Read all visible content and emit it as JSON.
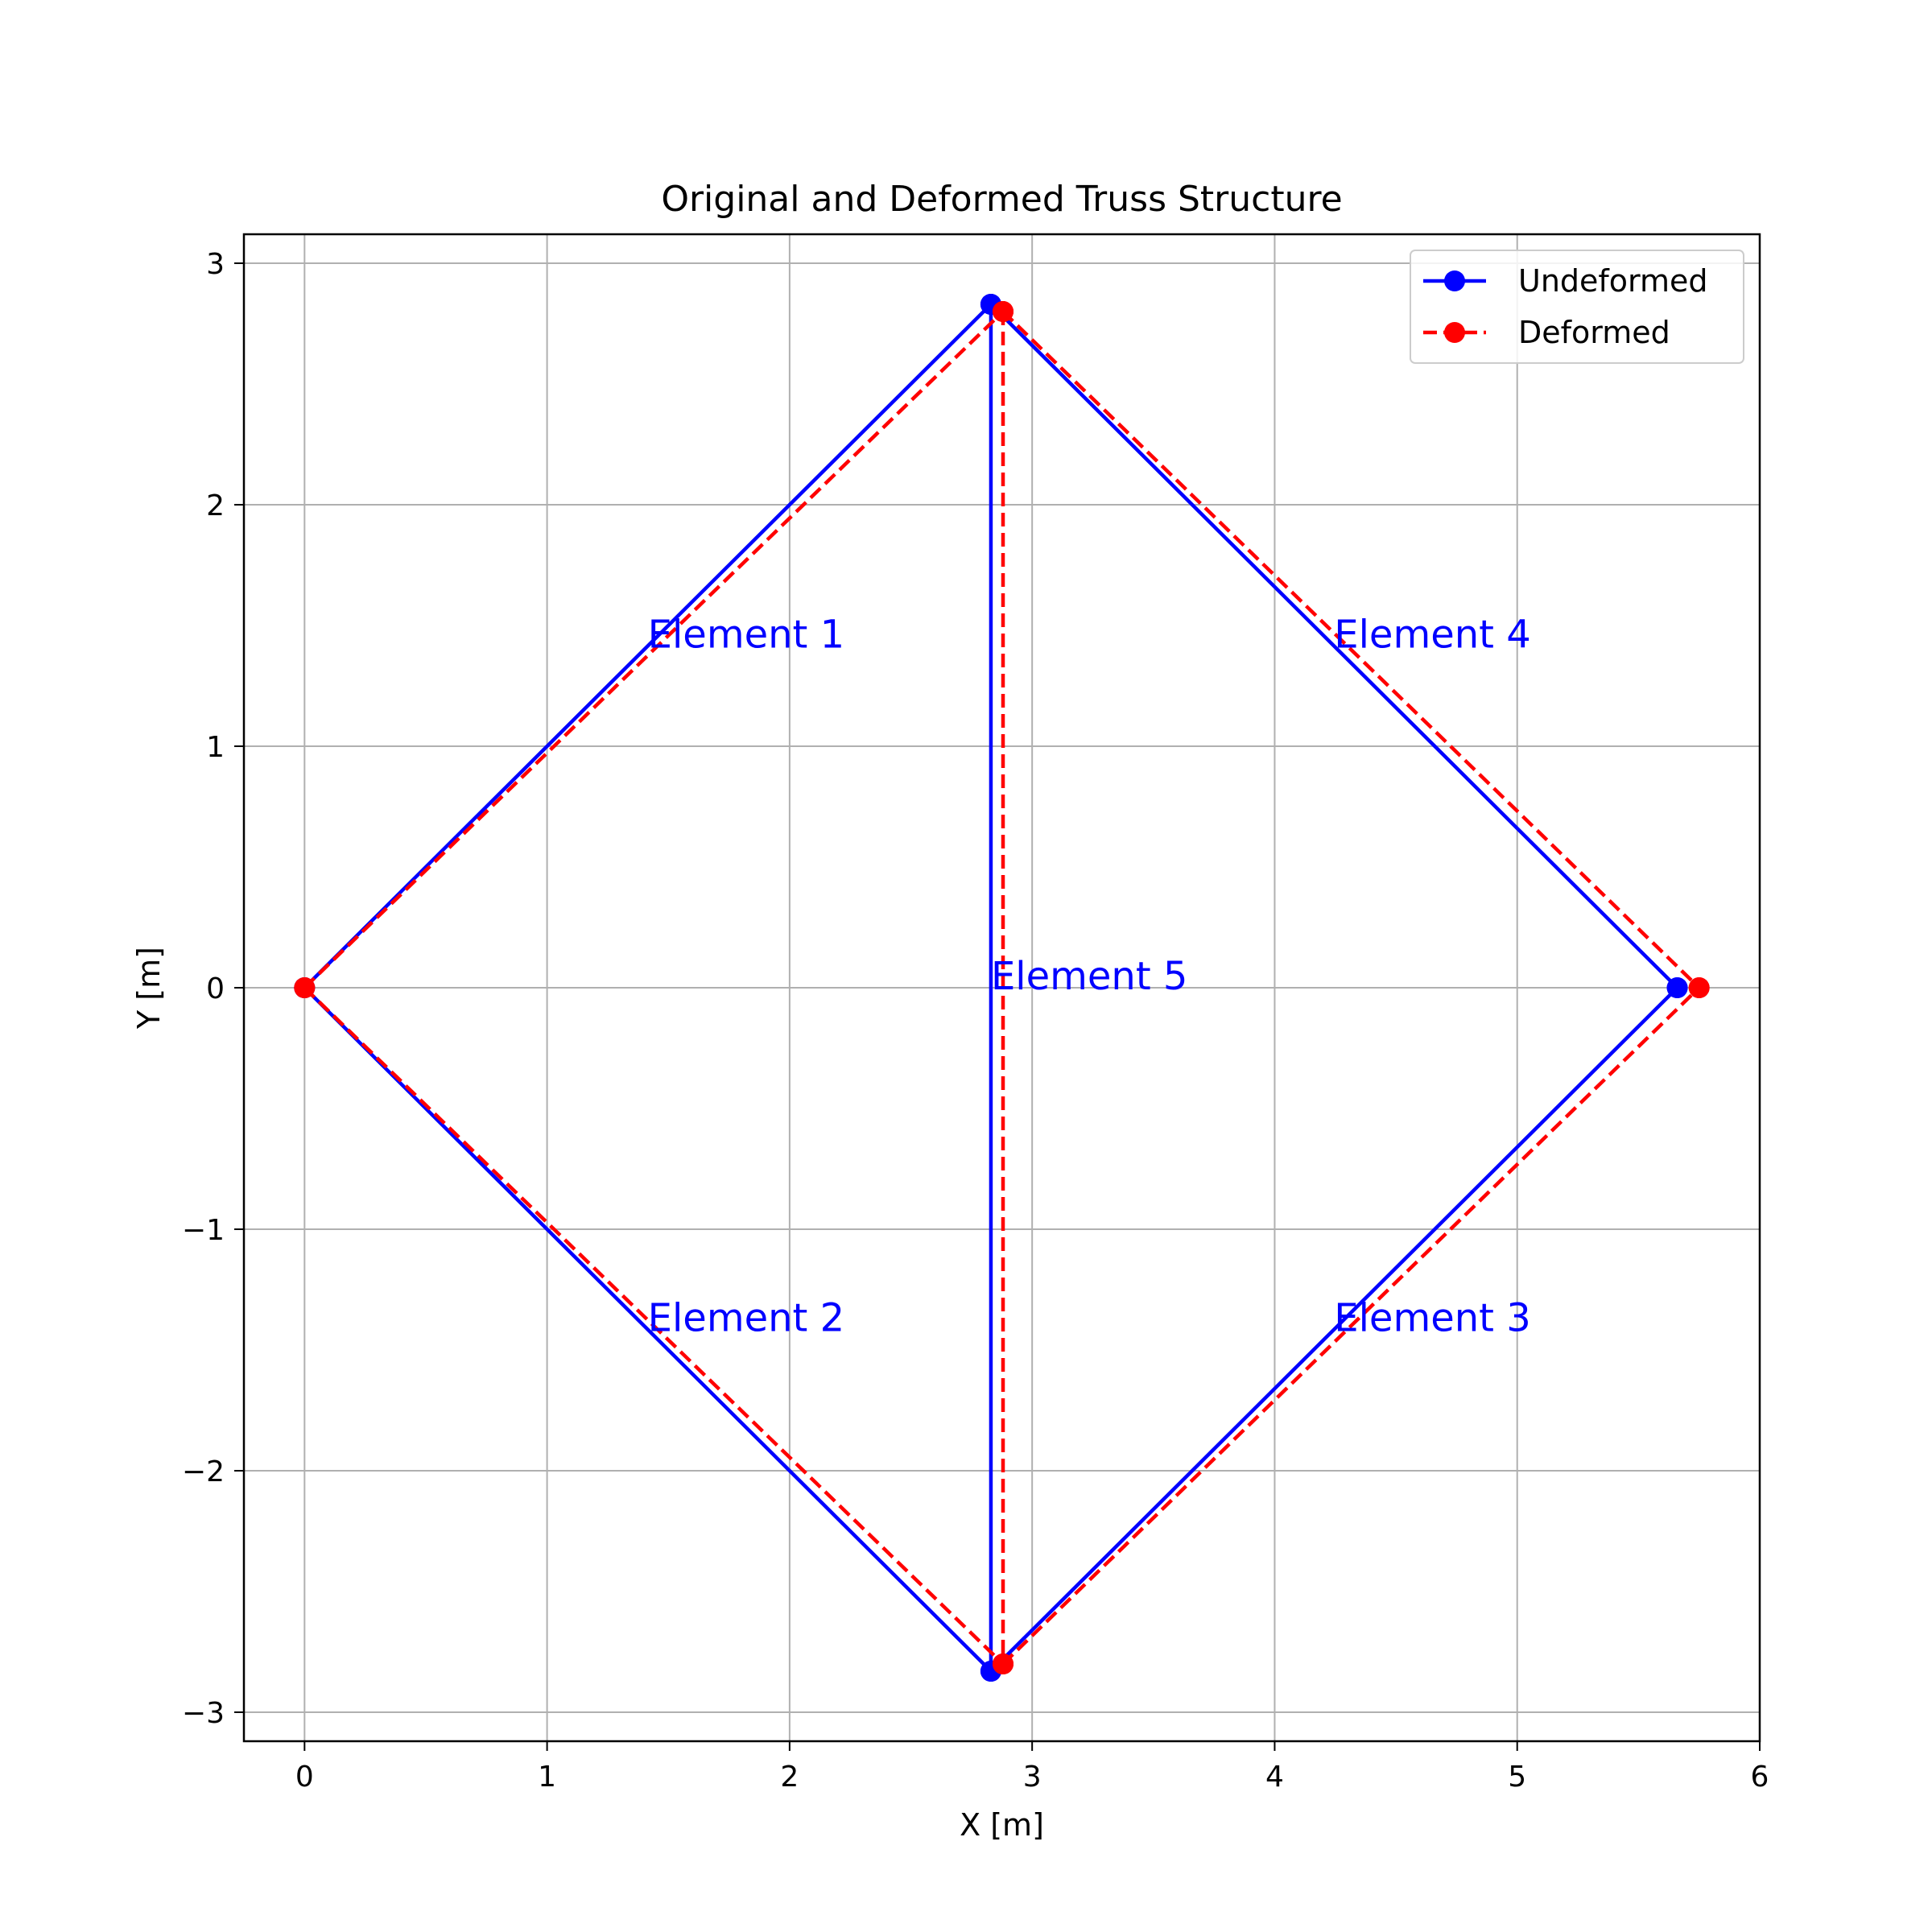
{
  "chart_data": {
    "type": "line",
    "title": "Original and Deformed Truss Structure",
    "xlabel": "X [m]",
    "ylabel": "Y [m]",
    "xlim": [
      -0.25,
      6.0
    ],
    "ylim": [
      -3.12,
      3.12
    ],
    "xticks": [
      0,
      1,
      2,
      3,
      4,
      5,
      6
    ],
    "yticks": [
      -3,
      -2,
      -1,
      0,
      1,
      2,
      3
    ],
    "xtick_labels": [
      "0",
      "1",
      "2",
      "3",
      "4",
      "5",
      "6"
    ],
    "ytick_labels": [
      "−3",
      "−2",
      "−1",
      "0",
      "1",
      "2",
      "3"
    ],
    "grid": true,
    "legend_position": "top-right",
    "series": [
      {
        "name": "Undeformed",
        "color": "#0000ff",
        "line_style": "solid",
        "marker": "circle",
        "segments": [
          [
            [
              0,
              0
            ],
            [
              2.83,
              2.83
            ]
          ],
          [
            [
              0,
              0
            ],
            [
              2.83,
              -2.83
            ]
          ],
          [
            [
              2.83,
              -2.83
            ],
            [
              5.66,
              0
            ]
          ],
          [
            [
              2.83,
              2.83
            ],
            [
              5.66,
              0
            ]
          ],
          [
            [
              2.83,
              2.83
            ],
            [
              2.83,
              -2.83
            ]
          ]
        ]
      },
      {
        "name": "Deformed",
        "color": "#ff0000",
        "line_style": "dashed",
        "marker": "circle",
        "segments": [
          [
            [
              0,
              0
            ],
            [
              2.88,
              2.8
            ]
          ],
          [
            [
              0,
              0
            ],
            [
              2.88,
              -2.8
            ]
          ],
          [
            [
              2.88,
              -2.8
            ],
            [
              5.75,
              0
            ]
          ],
          [
            [
              2.88,
              2.8
            ],
            [
              5.75,
              0
            ]
          ],
          [
            [
              2.88,
              2.8
            ],
            [
              2.88,
              -2.8
            ]
          ]
        ]
      }
    ],
    "annotations": [
      {
        "text": "Element 1",
        "x": 1.415,
        "y": 1.415,
        "color": "#0000ff"
      },
      {
        "text": "Element 2",
        "x": 1.415,
        "y": -1.415,
        "color": "#0000ff"
      },
      {
        "text": "Element 3",
        "x": 4.245,
        "y": -1.415,
        "color": "#0000ff"
      },
      {
        "text": "Element 4",
        "x": 4.245,
        "y": 1.415,
        "color": "#0000ff"
      },
      {
        "text": "Element 5",
        "x": 2.83,
        "y": 0,
        "color": "#0000ff"
      }
    ]
  }
}
